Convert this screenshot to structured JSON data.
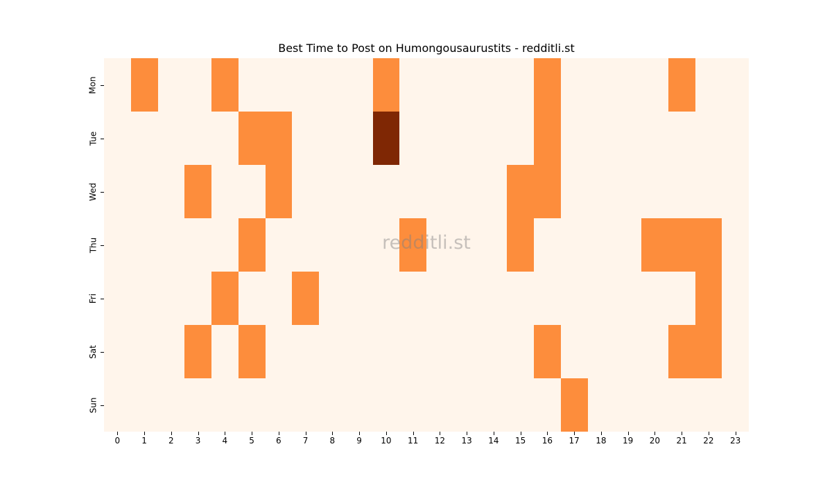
{
  "chart_data": {
    "type": "heatmap",
    "title": "Best Time to Post on Humongousaurustits - redditli.st",
    "watermark": "redditli.st",
    "xlabel": "",
    "ylabel": "",
    "x": [
      "0",
      "1",
      "2",
      "3",
      "4",
      "5",
      "6",
      "7",
      "8",
      "9",
      "10",
      "11",
      "12",
      "13",
      "14",
      "15",
      "16",
      "17",
      "18",
      "19",
      "20",
      "21",
      "22",
      "23"
    ],
    "y": [
      "Mon",
      "Tue",
      "Wed",
      "Thu",
      "Fri",
      "Sat",
      "Sun"
    ],
    "colormap": "Oranges",
    "colors": {
      "0": "#fff5eb",
      "1": "#fd8d3c",
      "2": "#7f2704"
    },
    "values": [
      [
        0,
        1,
        0,
        0,
        1,
        0,
        0,
        0,
        0,
        0,
        1,
        0,
        0,
        0,
        0,
        0,
        1,
        0,
        0,
        0,
        0,
        1,
        0,
        0
      ],
      [
        0,
        0,
        0,
        0,
        0,
        1,
        1,
        0,
        0,
        0,
        2,
        0,
        0,
        0,
        0,
        0,
        1,
        0,
        0,
        0,
        0,
        0,
        0,
        0
      ],
      [
        0,
        0,
        0,
        1,
        0,
        0,
        1,
        0,
        0,
        0,
        0,
        0,
        0,
        0,
        0,
        1,
        1,
        0,
        0,
        0,
        0,
        0,
        0,
        0
      ],
      [
        0,
        0,
        0,
        0,
        0,
        1,
        0,
        0,
        0,
        0,
        0,
        1,
        0,
        0,
        0,
        1,
        0,
        0,
        0,
        0,
        1,
        1,
        1,
        0
      ],
      [
        0,
        0,
        0,
        0,
        1,
        0,
        0,
        1,
        0,
        0,
        0,
        0,
        0,
        0,
        0,
        0,
        0,
        0,
        0,
        0,
        0,
        0,
        1,
        0
      ],
      [
        0,
        0,
        0,
        1,
        0,
        1,
        0,
        0,
        0,
        0,
        0,
        0,
        0,
        0,
        0,
        0,
        1,
        0,
        0,
        0,
        0,
        1,
        1,
        0
      ],
      [
        0,
        0,
        0,
        0,
        0,
        0,
        0,
        0,
        0,
        0,
        0,
        0,
        0,
        0,
        0,
        0,
        0,
        1,
        0,
        0,
        0,
        0,
        0,
        0
      ]
    ],
    "grid": false,
    "legend": "none"
  }
}
